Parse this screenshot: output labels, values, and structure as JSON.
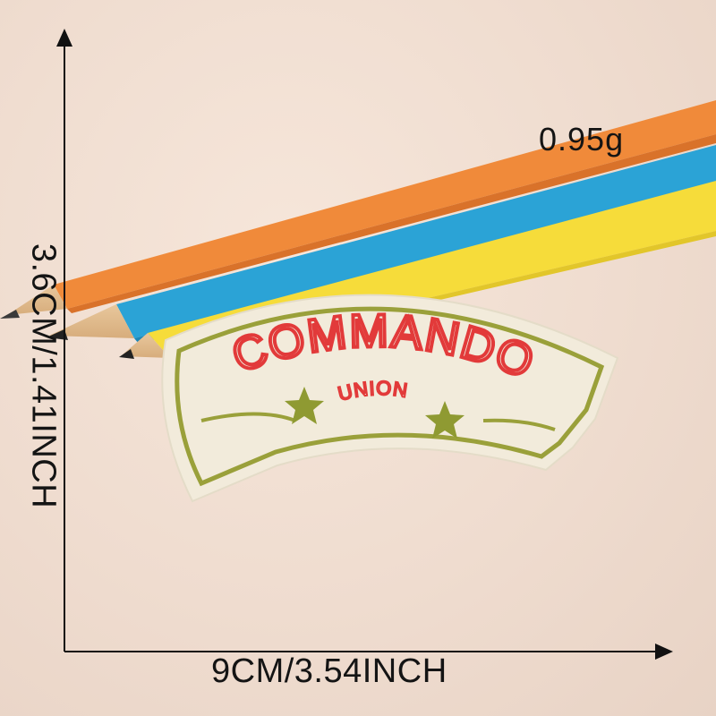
{
  "measurements": {
    "weight": "0.95g",
    "width": "9CM/3.54INCH",
    "height": "3.6CM/1.41INCH"
  },
  "patch": {
    "main_text": "COMMANDO",
    "sub_text": "UNION",
    "colors": {
      "fabric": "#f2ebdb",
      "border": "#9aa03a",
      "lettering": "#e23a3a",
      "stars": "#8f9a32"
    }
  },
  "pencils": [
    {
      "color_name": "orange",
      "color": "#f08a3a"
    },
    {
      "color_name": "blue",
      "color": "#2ba3d6"
    },
    {
      "color_name": "yellow",
      "color": "#f6dc3a"
    }
  ],
  "colors": {
    "background": "#efdccf",
    "axis": "#111111",
    "text": "#141414"
  }
}
